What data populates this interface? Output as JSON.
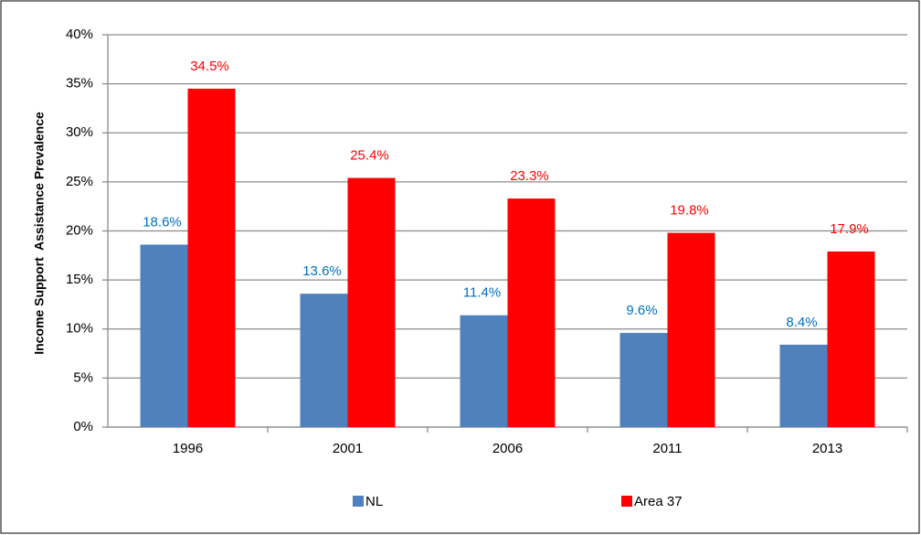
{
  "chart_data": {
    "type": "bar",
    "y_label": "Income Support  Assistance Prevalence",
    "categories": [
      "1996",
      "2001",
      "2006",
      "2011",
      "2013"
    ],
    "series": [
      {
        "name": "NL",
        "color": "#4f81bd",
        "label_color": "#0070c0",
        "values": [
          18.6,
          13.6,
          11.4,
          9.6,
          8.4
        ],
        "value_labels": [
          "18.6%",
          "13.6%",
          "11.4%",
          "9.6%",
          "8.4%"
        ]
      },
      {
        "name": "Area 37",
        "color": "#ff0000",
        "label_color": "#ff0000",
        "values": [
          34.5,
          25.4,
          23.3,
          19.8,
          17.9
        ],
        "value_labels": [
          "34.5%",
          "25.4%",
          "23.3%",
          "19.8%",
          "17.9%"
        ]
      }
    ],
    "ylim": [
      0,
      40
    ],
    "yticks": [
      {
        "value": 0,
        "label": "0%"
      },
      {
        "value": 5,
        "label": "5%"
      },
      {
        "value": 10,
        "label": "10%"
      },
      {
        "value": 15,
        "label": "15%"
      },
      {
        "value": 20,
        "label": "20%"
      },
      {
        "value": 25,
        "label": "25%"
      },
      {
        "value": 30,
        "label": "30%"
      },
      {
        "value": 35,
        "label": "35%"
      },
      {
        "value": 40,
        "label": "40%"
      }
    ],
    "grid": true,
    "legend": "bottom"
  }
}
